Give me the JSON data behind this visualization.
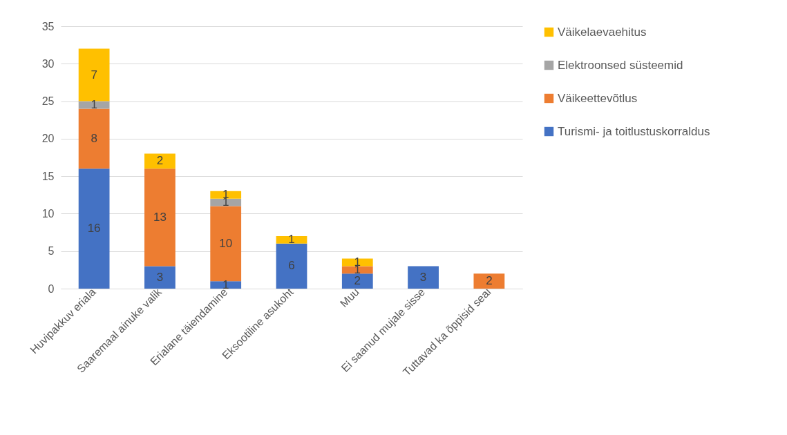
{
  "chart_data": {
    "type": "bar",
    "stacked": true,
    "categories": [
      "Huvipakkuv eriala",
      "Saaremaal ainuke valik",
      "Erialane täiendamine",
      "Eksootiline asukoht",
      "Muu",
      "Ei saanud mujale sisse",
      "Tuttavad ka õppisid seal"
    ],
    "series": [
      {
        "name": "Turismi- ja toitlustuskorraldus",
        "color": "#4472c4",
        "values": [
          16,
          3,
          1,
          6,
          2,
          3,
          null
        ]
      },
      {
        "name": "Väikeettevõtlus",
        "color": "#ed7d31",
        "values": [
          8,
          13,
          10,
          null,
          1,
          null,
          2
        ]
      },
      {
        "name": "Elektroonsed süsteemid",
        "color": "#a5a5a5",
        "values": [
          1,
          null,
          1,
          null,
          null,
          null,
          null
        ]
      },
      {
        "name": "Väikelaevaehitus",
        "color": "#ffc000",
        "values": [
          7,
          2,
          1,
          1,
          1,
          null,
          null
        ]
      }
    ],
    "ylim": [
      0,
      35
    ],
    "yticks": [
      0,
      5,
      10,
      15,
      20,
      25,
      30,
      35
    ],
    "grid": "y",
    "legend": "right",
    "data_labels": true
  }
}
